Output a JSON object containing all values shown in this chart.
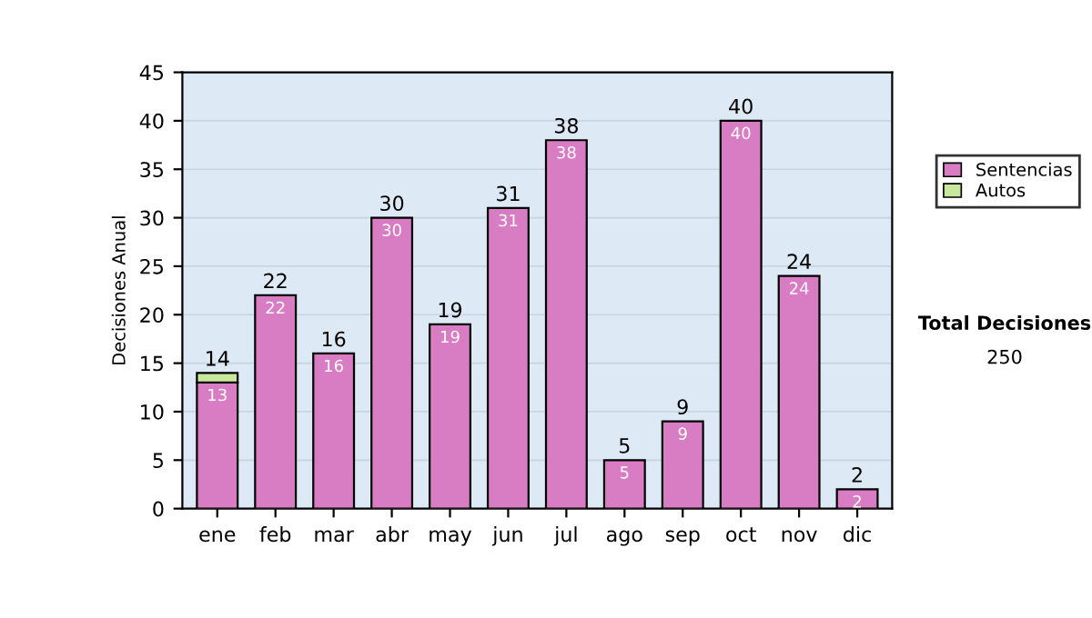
{
  "chart_data": {
    "type": "bar",
    "stacked": true,
    "ylabel": "Decisiones Anual",
    "categories": [
      "ene",
      "feb",
      "mar",
      "abr",
      "may",
      "jun",
      "jul",
      "ago",
      "sep",
      "oct",
      "nov",
      "dic"
    ],
    "series": [
      {
        "name": "Sentencias",
        "color": "#d87cc4",
        "values": [
          13,
          22,
          16,
          30,
          19,
          31,
          38,
          5,
          9,
          40,
          24,
          2
        ],
        "value_labels": [
          "13",
          "22",
          "16",
          "30",
          "19",
          "31",
          "38",
          "5",
          "9",
          "40",
          "24",
          "2"
        ]
      },
      {
        "name": "Autos",
        "color": "#c8e89c",
        "values": [
          1,
          null,
          null,
          null,
          null,
          null,
          null,
          null,
          null,
          null,
          null,
          null
        ]
      }
    ],
    "totals": [
      "14",
      "22",
      "16",
      "30",
      "19",
      "31",
      "38",
      "5",
      "9",
      "40",
      "24",
      "2"
    ],
    "ylim": [
      0,
      45
    ],
    "yticks": [
      0,
      5,
      10,
      15,
      20,
      25,
      30,
      35,
      40,
      45
    ],
    "grid": "y",
    "legend": "right",
    "annotations": [
      "Total Decisiones",
      "250"
    ]
  }
}
